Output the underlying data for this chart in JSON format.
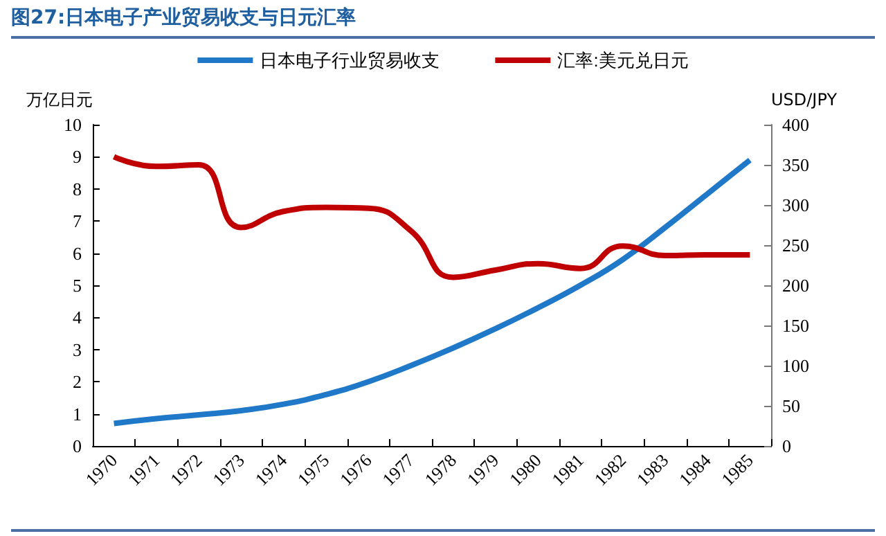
{
  "chart_data": {
    "type": "line",
    "title": "图27:日本电子产业贸易收支与日元汇率",
    "ylabel": "万亿日元",
    "y2label": "USD/JPY",
    "categories": [
      "1970",
      "1971",
      "1972",
      "1973",
      "1974",
      "1975",
      "1976",
      "1977",
      "1978",
      "1979",
      "1980",
      "1981",
      "1982",
      "1983",
      "1984",
      "1985"
    ],
    "series": [
      {
        "name": "日本电子行业贸易收支",
        "color": "#1f78c8",
        "values": [
          0.7,
          0.85,
          0.97,
          1.1,
          1.3,
          1.6,
          2.0,
          2.5,
          3.05,
          3.65,
          4.3,
          5.0,
          5.8,
          6.8,
          7.85,
          8.9
        ]
      },
      {
        "name": "汇率:美元兑日元",
        "color": "#c00000",
        "axis": "y2",
        "values": [
          360,
          348,
          350,
          272,
          292,
          297,
          296,
          268,
          210,
          219,
          227,
          221,
          249,
          237,
          238,
          238
        ]
      }
    ],
    "ylim": [
      0,
      10
    ],
    "yticks": [
      0,
      1,
      2,
      3,
      4,
      5,
      6,
      7,
      8,
      9,
      10
    ],
    "y2lim": [
      0,
      400
    ],
    "y2ticks": [
      0,
      50,
      100,
      150,
      200,
      250,
      300,
      350,
      400
    ],
    "legend": "top",
    "grid": false,
    "marker": "none",
    "line_style": "solid"
  }
}
